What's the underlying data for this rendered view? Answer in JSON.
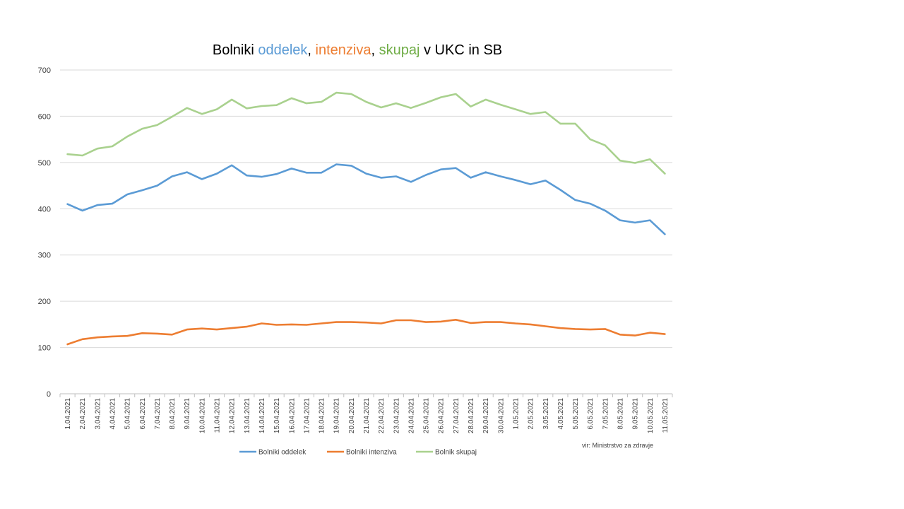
{
  "chart_data": {
    "type": "line",
    "title_parts": [
      {
        "text": "Bolniki ",
        "color": "#000000"
      },
      {
        "text": "oddelek",
        "color": "#5B9BD5"
      },
      {
        "text": ", ",
        "color": "#000000"
      },
      {
        "text": "intenziva",
        "color": "#ED7D31"
      },
      {
        "text": ", ",
        "color": "#000000"
      },
      {
        "text": "skupaj",
        "color": "#70AD47"
      },
      {
        "text": " v UKC in SB",
        "color": "#000000"
      }
    ],
    "source_note": "vir: Ministrstvo za zdravje",
    "ylim": [
      0,
      700
    ],
    "yticks": [
      0,
      100,
      200,
      300,
      400,
      500,
      600,
      700
    ],
    "grid": true,
    "legend_position": "bottom",
    "categories": [
      "1.04.2021",
      "2.04.2021",
      "3.04.2021",
      "4.04.2021",
      "5.04.2021",
      "6.04.2021",
      "7.04.2021",
      "8.04.2021",
      "9.04.2021",
      "10.04.2021",
      "11.04.2021",
      "12.04.2021",
      "13.04.2021",
      "14.04.2021",
      "15.04.2021",
      "16.04.2021",
      "17.04.2021",
      "18.04.2021",
      "19.04.2021",
      "20.04.2021",
      "21.04.2021",
      "22.04.2021",
      "23.04.2021",
      "24.04.2021",
      "25.04.2021",
      "26.04.2021",
      "27.04.2021",
      "28.04.2021",
      "29.04.2021",
      "30.04.2021",
      "1.05.2021",
      "2.05.2021",
      "3.05.2021",
      "4.05.2021",
      "5.05.2021",
      "6.05.2021",
      "7.05.2021",
      "8.05.2021",
      "9.05.2021",
      "10.05.2021",
      "11.05.2021"
    ],
    "series": [
      {
        "name": "Bolniki oddelek",
        "color": "#5B9BD5",
        "values": [
          410,
          396,
          408,
          411,
          431,
          440,
          450,
          470,
          479,
          464,
          476,
          494,
          472,
          469,
          475,
          487,
          478,
          478,
          496,
          493,
          476,
          467,
          470,
          458,
          473,
          485,
          488,
          467,
          479,
          470,
          462,
          453,
          461,
          441,
          419,
          411,
          396,
          375,
          370,
          375,
          345
        ]
      },
      {
        "name": "Bolniki intenziva",
        "color": "#ED7D31",
        "values": [
          107,
          118,
          122,
          124,
          125,
          131,
          130,
          128,
          139,
          141,
          139,
          142,
          145,
          152,
          149,
          150,
          149,
          152,
          155,
          155,
          154,
          152,
          159,
          159,
          155,
          156,
          160,
          153,
          155,
          155,
          152,
          150,
          146,
          142,
          140,
          139,
          140,
          128,
          126,
          132,
          129
        ]
      },
      {
        "name": "Bolnik skupaj",
        "color": "#A9D18E",
        "values": [
          518,
          515,
          530,
          535,
          556,
          573,
          581,
          599,
          618,
          605,
          615,
          636,
          617,
          622,
          624,
          639,
          628,
          631,
          651,
          648,
          631,
          619,
          628,
          618,
          629,
          641,
          648,
          621,
          636,
          625,
          615,
          605,
          609,
          584,
          584,
          550,
          537,
          504,
          499,
          507,
          476
        ]
      }
    ]
  }
}
